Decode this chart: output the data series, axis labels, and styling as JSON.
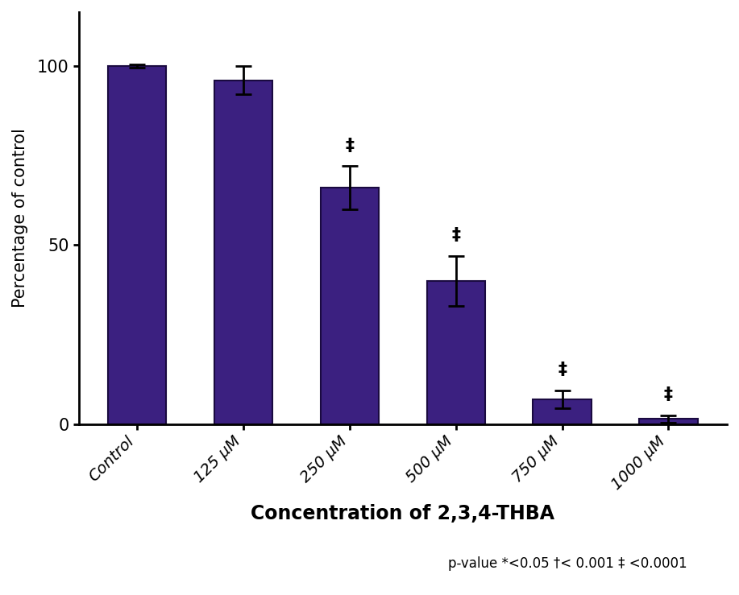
{
  "categories": [
    "Control",
    "125 μM",
    "250 μM",
    "500 μM",
    "750 μM",
    "1000 μM"
  ],
  "values": [
    100,
    96,
    66,
    40,
    7,
    1.5
  ],
  "errors": [
    0.5,
    4,
    6,
    7,
    2.5,
    1.0
  ],
  "bar_color": "#3b2080",
  "bar_edge_color": "#1a0a40",
  "significance": [
    false,
    false,
    true,
    true,
    true,
    true
  ],
  "sig_symbol": "‡",
  "ylabel": "Percentage of control",
  "xlabel": "Concentration of 2,3,4-THBA",
  "ylim": [
    0,
    115
  ],
  "yticks": [
    0,
    50,
    100
  ],
  "pvalue_text": "p-value *<0.05 †< 0.001 ‡ <0.0001",
  "axis_fontsize": 15,
  "tick_fontsize": 14,
  "sig_fontsize": 16,
  "pvalue_fontsize": 12,
  "background_color": "#ffffff",
  "bar_width": 0.55
}
